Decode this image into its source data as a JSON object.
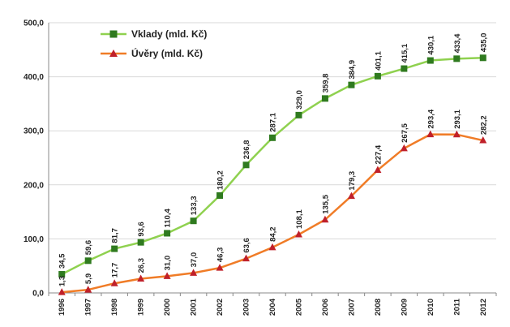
{
  "chart_data": {
    "type": "line",
    "title": "",
    "xlabel": "",
    "ylabel": "",
    "ylim": [
      0,
      500
    ],
    "yticks": [
      "0,0",
      "100,0",
      "200,0",
      "300,0",
      "400,0",
      "500,0"
    ],
    "grid": true,
    "legend_position": "top-left",
    "categories": [
      "1996",
      "1997",
      "1998",
      "1999",
      "2000",
      "2001",
      "2002",
      "2003",
      "2004",
      "2005",
      "2006",
      "2007",
      "2008",
      "2009",
      "2010",
      "2011",
      "2012"
    ],
    "series": [
      {
        "name": "Vklady (mld. Kč)",
        "color": "#8fd14f",
        "marker_color": "#2f7a1f",
        "marker": "square",
        "values": [
          34.5,
          59.6,
          81.7,
          93.6,
          110.4,
          133.3,
          180.2,
          236.8,
          287.1,
          329.0,
          359.8,
          384.9,
          401.1,
          415.1,
          430.1,
          433.4,
          435.0
        ],
        "labels": [
          "34,5",
          "59,6",
          "81,7",
          "93,6",
          "110,4",
          "133,3",
          "180,2",
          "236,8",
          "287,1",
          "329,0",
          "359,8",
          "384,9",
          "401,1",
          "415,1",
          "430,1",
          "433,4",
          "435,0"
        ]
      },
      {
        "name": "Úvěry (mld. Kč)",
        "color": "#f07c27",
        "marker_color": "#c0202a",
        "marker": "triangle",
        "values": [
          1.3,
          5.9,
          17.7,
          26.3,
          31.0,
          37.0,
          46.3,
          63.6,
          84.2,
          108.1,
          135.5,
          179.3,
          227.4,
          267.5,
          293.4,
          293.1,
          282.2
        ],
        "labels": [
          "1,3",
          "5,9",
          "17,7",
          "26,3",
          "31,0",
          "37,0",
          "46,3",
          "63,6",
          "84,2",
          "108,1",
          "135,5",
          "179,3",
          "227,4",
          "267,5",
          "293,4",
          "293,1",
          "282,2"
        ]
      }
    ]
  }
}
